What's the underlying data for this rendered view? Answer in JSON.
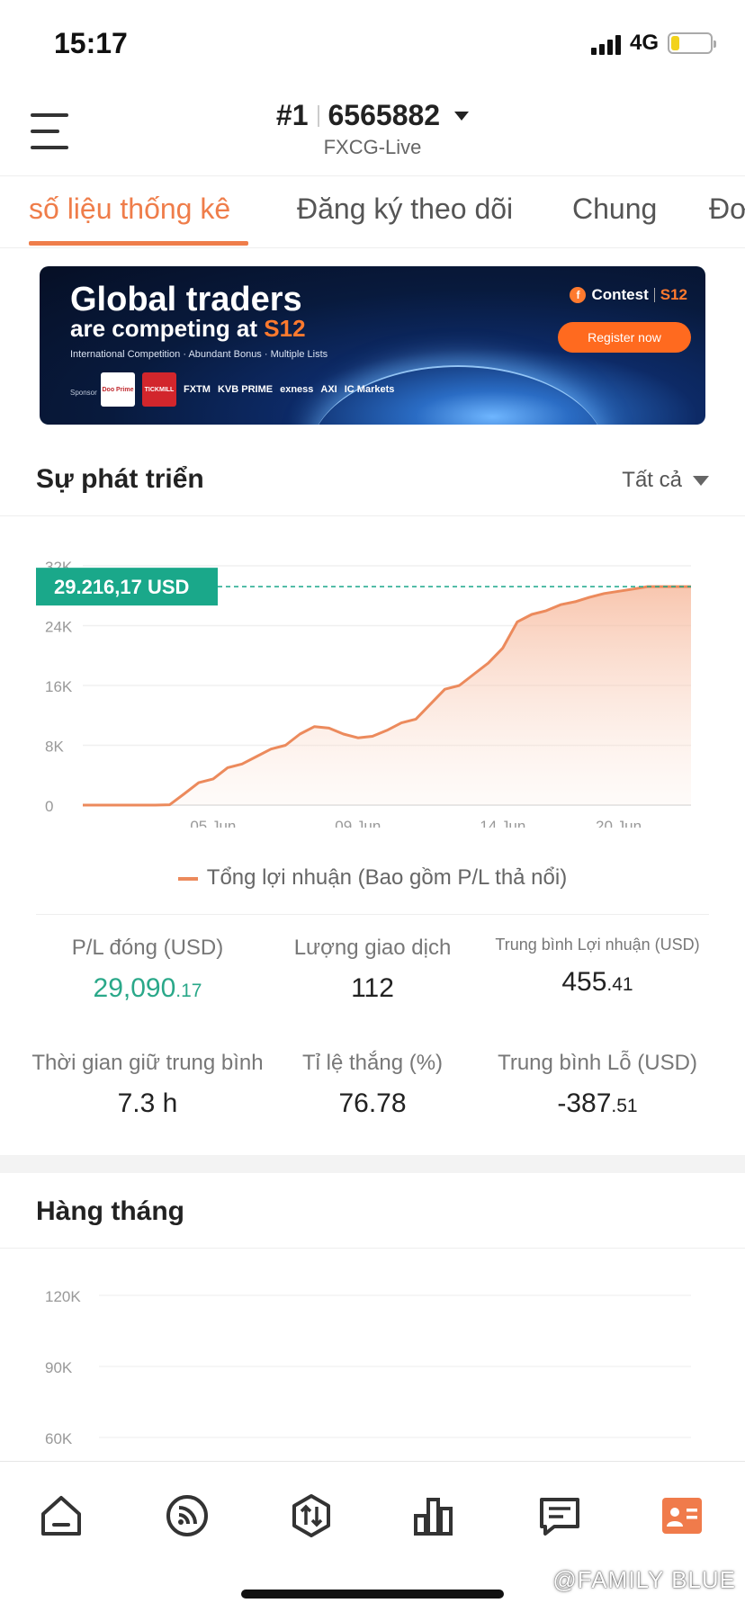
{
  "status_bar": {
    "time": "15:17",
    "network": "4G",
    "battery_level": 0.22
  },
  "header": {
    "rank": "#1",
    "account_number": "6565882",
    "server": "FXCG-Live"
  },
  "tabs": [
    {
      "label": "số liệu thống kê",
      "active": true
    },
    {
      "label": "Đăng ký theo dõi",
      "active": false
    },
    {
      "label": "Chung",
      "active": false
    },
    {
      "label": "Đơ",
      "active": false
    }
  ],
  "banner": {
    "title_line1": "Global traders",
    "title_line2_prefix": "are competing at",
    "title_line2_brand": "S12",
    "subtitle": "International Competition · Abundant Bonus · Multiple Lists",
    "sponsor_label": "Sponsor",
    "sponsors": [
      "Doo Prime",
      "TICKMILL",
      "FXTM",
      "KVB PRIME",
      "exness",
      "AXI",
      "IC Markets"
    ],
    "contest_label": "Contest",
    "contest_brand": "S12",
    "register_label": "Register now"
  },
  "development": {
    "title": "Sự phát triển",
    "filter_label": "Tất cả",
    "current_value_label": "29.216,17  USD",
    "legend": "Tổng lợi nhuận (Bao gồm P/L thả nổi)"
  },
  "chart_data": [
    {
      "type": "area",
      "title": "",
      "series": [
        {
          "name": "Tổng lợi nhuận (Bao gồm P/L thả nổi)",
          "color": "#ec8a5c",
          "x": [
            0,
            0.5,
            1,
            1.5,
            2,
            2.5,
            3,
            3.5,
            4,
            4.5,
            5,
            5.5,
            6,
            6.5,
            7,
            7.5,
            8,
            8.5,
            9,
            9.5,
            10,
            10.5,
            11,
            11.5,
            12,
            12.5,
            13,
            13.5,
            14,
            14.5,
            15,
            15.5,
            16,
            16.5,
            17,
            17.5,
            18,
            18.5,
            19,
            19.5,
            20,
            20.5,
            21
          ],
          "values": [
            0,
            0,
            0,
            0,
            0,
            0,
            50,
            1500,
            3000,
            3500,
            5000,
            5500,
            6500,
            7500,
            8000,
            9500,
            10500,
            10300,
            9500,
            9000,
            9200,
            10000,
            11000,
            11500,
            13500,
            15500,
            16000,
            17500,
            19000,
            21000,
            24500,
            25500,
            26000,
            26800,
            27200,
            27800,
            28300,
            28600,
            28900,
            29216,
            29216,
            29216,
            29216
          ]
        }
      ],
      "x_ticks": [
        {
          "x": 4.5,
          "label": "05 Jun"
        },
        {
          "x": 9.5,
          "label": "09 Jun"
        },
        {
          "x": 14.5,
          "label": "14 Jun"
        },
        {
          "x": 18.5,
          "label": "20 Jun"
        }
      ],
      "y_ticks": [
        {
          "value": 0,
          "label": "0"
        },
        {
          "value": 8000,
          "label": "8K"
        },
        {
          "value": 16000,
          "label": "16K"
        },
        {
          "value": 24000,
          "label": "24K"
        },
        {
          "value": 32000,
          "label": "32K"
        }
      ],
      "ylim": [
        0,
        32000
      ],
      "xlim": [
        0,
        21
      ],
      "current_value": 29216.17,
      "grid": true,
      "legend_position": "bottom"
    },
    {
      "type": "bar",
      "title": "Hàng tháng",
      "y_ticks": [
        {
          "value": 120000,
          "label": "120K"
        },
        {
          "value": 90000,
          "label": "90K"
        },
        {
          "value": 60000,
          "label": "60K"
        }
      ],
      "grid": true
    }
  ],
  "stats": [
    {
      "label": "P/L đóng (USD)",
      "int": "29,090",
      "dec": ".17",
      "green": true,
      "small_label": false
    },
    {
      "label": "Lượng giao dịch",
      "int": "112",
      "dec": "",
      "green": false,
      "small_label": false
    },
    {
      "label": "Trung bình Lợi nhuận (USD)",
      "int": "455",
      "dec": ".41",
      "green": false,
      "small_label": true
    },
    {
      "label": "Thời gian giữ trung bình",
      "int": "7.3 h",
      "dec": "",
      "green": false,
      "small_label": false
    },
    {
      "label": "Tỉ lệ thắng (%)",
      "int": "76.78",
      "dec": "",
      "green": false,
      "small_label": false
    },
    {
      "label": "Trung bình Lỗ (USD)",
      "int": "-387",
      "dec": ".51",
      "green": false,
      "small_label": false
    }
  ],
  "monthly": {
    "title": "Hàng tháng"
  },
  "bottom_nav": {
    "items": [
      "home-icon",
      "feed-icon",
      "trade-icon",
      "chart-icon",
      "message-icon",
      "profile-icon"
    ],
    "active_index": 5,
    "accent": "#f07b4b"
  },
  "watermark": "@FAMILY BLUE"
}
